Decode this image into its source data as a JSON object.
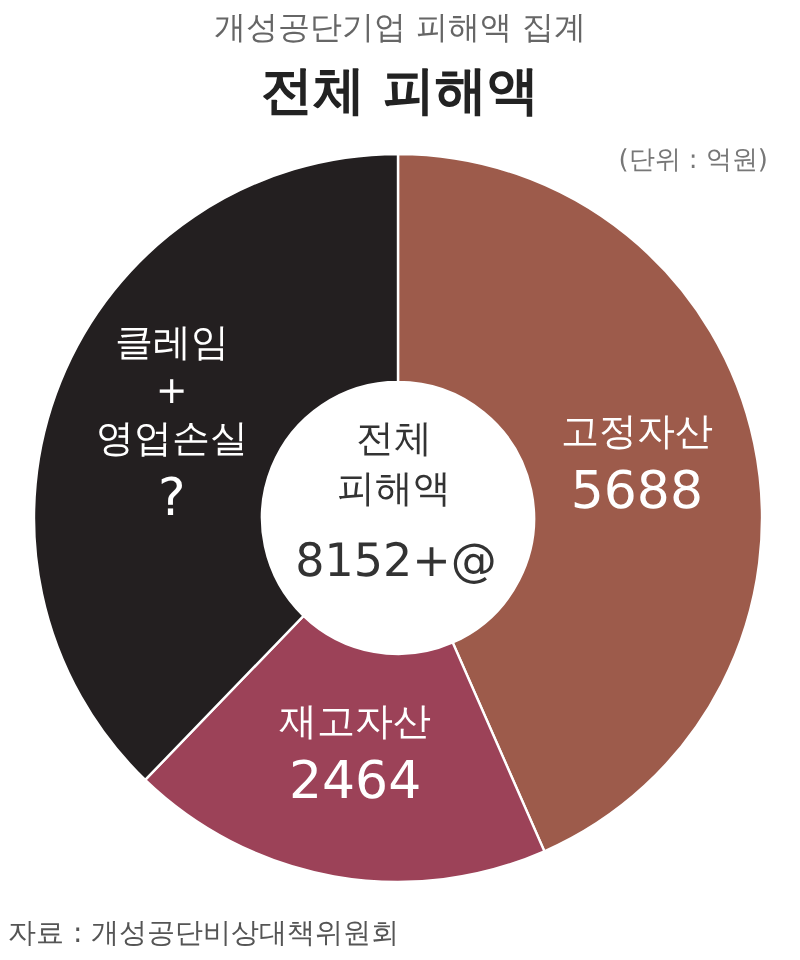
{
  "chart_data": {
    "type": "donut",
    "title": "전체 피해액",
    "subtitle": "개성공단기업 피해액 집계",
    "categories": [
      "고정자산",
      "재고자산",
      "클레임 + 영업손실"
    ],
    "values": [
      5688,
      2464,
      4950
    ],
    "colors": [
      "#9d5b4b",
      "#9c4258",
      "#231f20"
    ],
    "value_labels": [
      "5688",
      "2464",
      "?"
    ],
    "annotations": [
      "(단위 : 억원)",
      "전체 피해액",
      "8152+@",
      "자료 : 개성공단비상대책위원회"
    ]
  }
}
